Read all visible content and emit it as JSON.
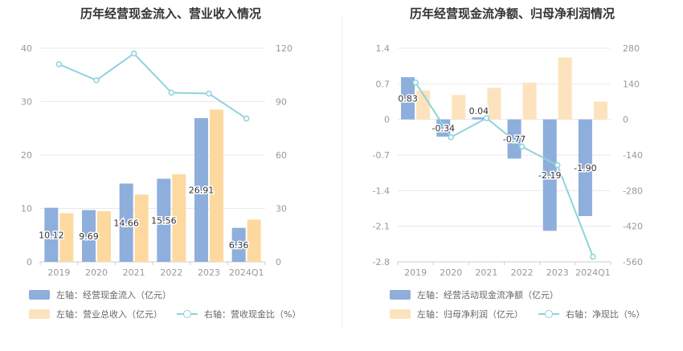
{
  "charts": [
    {
      "title": "历年经营现金流入、营业收入情况",
      "legend": [
        {
          "label": "左轴：经营现金流入（亿元）",
          "color": "#8eaedc",
          "kind": "bar"
        },
        {
          "label": "左轴：营业总收入（亿元）",
          "color": "#fdd9a0",
          "kind": "bar"
        },
        {
          "label": "右轴：营收现金比（%）",
          "color": "#8fd3dc",
          "kind": "line"
        }
      ]
    },
    {
      "title": "历年经营现金流净额、归母净利润情况",
      "legend": [
        {
          "label": "左轴：经营活动现金流净额（亿元）",
          "color": "#8eaedc",
          "kind": "bar"
        },
        {
          "label": "左轴：归母净利润（亿元）",
          "color": "#fde3bd",
          "kind": "bar"
        },
        {
          "label": "右轴：净现比（%）",
          "color": "#8fd3dc",
          "kind": "line"
        }
      ]
    }
  ],
  "chart_data": [
    {
      "type": "bar",
      "categories": [
        "2019",
        "2020",
        "2021",
        "2022",
        "2023",
        "2024Q1"
      ],
      "series": [
        {
          "name": "左轴：经营现金流入（亿元）",
          "axis": "left",
          "kind": "bar",
          "color": "#8eaedc",
          "values": [
            10.12,
            9.69,
            14.66,
            15.56,
            26.91,
            6.36
          ],
          "labels": [
            "10.12",
            "9.69",
            "14.66",
            "15.56",
            "26.91",
            "6.36"
          ]
        },
        {
          "name": "左轴：营业总收入（亿元）",
          "axis": "left",
          "kind": "bar",
          "color": "#fdd9a0",
          "values": [
            9.1,
            9.5,
            12.6,
            16.4,
            28.5,
            7.9
          ]
        },
        {
          "name": "右轴：营收现金比（%）",
          "axis": "right",
          "kind": "line",
          "color": "#8fd3dc",
          "values": [
            111,
            102,
            117,
            95,
            94.5,
            80.5
          ]
        }
      ],
      "left_axis": {
        "min": 0,
        "max": 40,
        "ticks": [
          0,
          10,
          20,
          30,
          40
        ]
      },
      "right_axis": {
        "min": 0,
        "max": 120,
        "ticks": [
          0,
          30,
          60,
          90,
          120
        ]
      },
      "grid": true
    },
    {
      "type": "bar",
      "categories": [
        "2019",
        "2020",
        "2021",
        "2022",
        "2023",
        "2024Q1"
      ],
      "series": [
        {
          "name": "左轴：经营活动现金流净额（亿元）",
          "axis": "left",
          "kind": "bar",
          "color": "#8eaedc",
          "values": [
            0.83,
            -0.34,
            0.04,
            -0.77,
            -2.19,
            -1.9
          ],
          "labels": [
            "0.83",
            "-0.34",
            "0.04",
            "-0.77",
            "-2.19",
            "-1.90"
          ]
        },
        {
          "name": "左轴：归母净利润（亿元）",
          "axis": "left",
          "kind": "bar",
          "color": "#fde3bd",
          "values": [
            0.57,
            0.48,
            0.62,
            0.72,
            1.22,
            0.35
          ]
        },
        {
          "name": "右轴：净现比（%）",
          "axis": "right",
          "kind": "line",
          "color": "#8fd3dc",
          "values": [
            145,
            -70,
            5,
            -107,
            -180,
            -540
          ]
        }
      ],
      "left_axis": {
        "min": -2.8,
        "max": 1.4,
        "ticks": [
          -2.8,
          -2.1,
          -1.4,
          -0.7,
          0,
          0.7,
          1.4
        ]
      },
      "right_axis": {
        "min": -560,
        "max": 280,
        "ticks": [
          -560,
          -420,
          -280,
          -140,
          0,
          140,
          280
        ]
      },
      "grid": true
    }
  ]
}
